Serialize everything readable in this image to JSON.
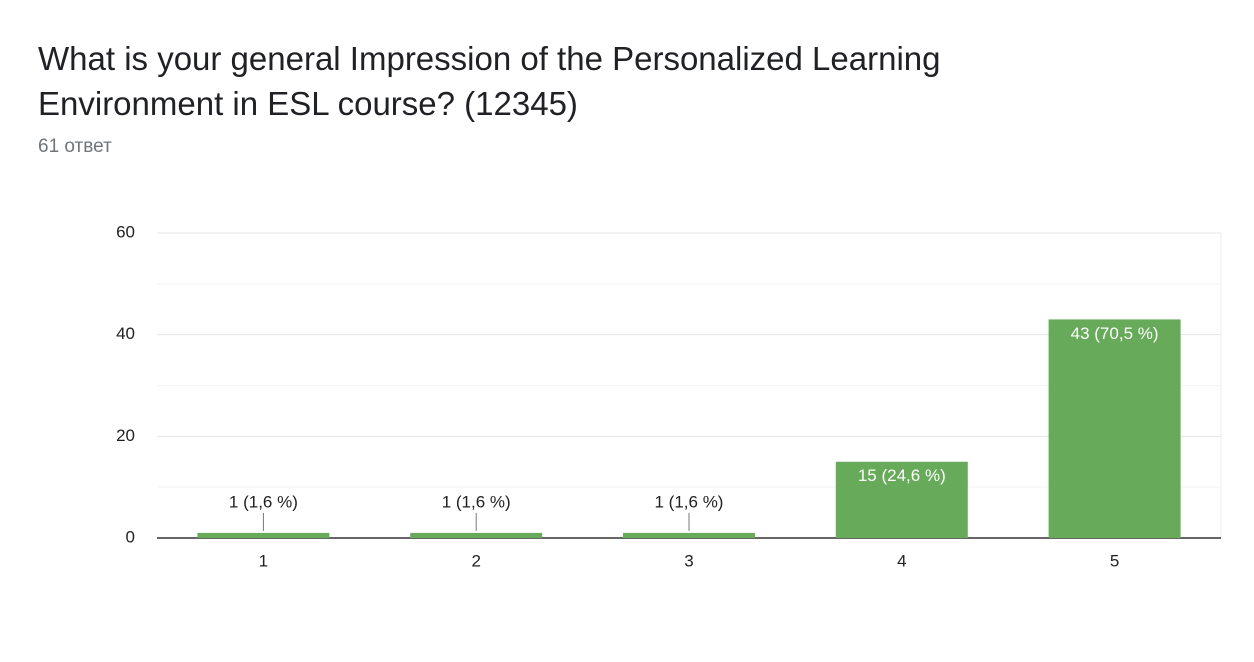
{
  "chart_data": {
    "type": "bar",
    "title": "What is your general Impression of the Personalized Learning Environment in ESL course? (12345)",
    "subtitle": "61 ответ",
    "categories": [
      "1",
      "2",
      "3",
      "4",
      "5"
    ],
    "values": [
      1,
      1,
      1,
      15,
      43
    ],
    "value_labels": [
      "1 (1,6 %)",
      "1 (1,6 %)",
      "1 (1,6 %)",
      "15 (24,6 %)",
      "43 (70,5 %)"
    ],
    "color": "#67ab5a",
    "ylim": [
      0,
      60
    ],
    "yticks": [
      0,
      20,
      40,
      60
    ],
    "minor_yticks": [
      10,
      30,
      50
    ],
    "grid": true
  }
}
